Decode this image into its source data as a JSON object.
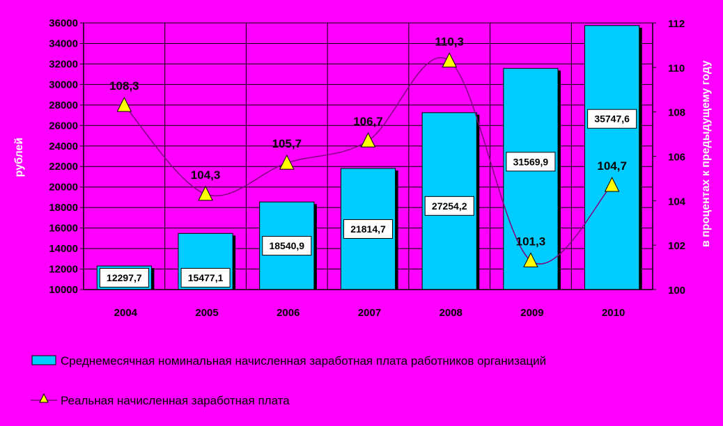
{
  "chart_data": {
    "type": "bar+line",
    "categories": [
      "2004",
      "2005",
      "2006",
      "2007",
      "2008",
      "2009",
      "2010"
    ],
    "series": [
      {
        "name": "Среднемесячная номинальная начисленная заработная плата работников организаций",
        "type": "bar",
        "axis": "left",
        "values": [
          12297.7,
          15477.1,
          18540.9,
          21814.7,
          27254.2,
          31569.9,
          35747.6
        ],
        "labels": [
          "12297,7",
          "15477,1",
          "18540,9",
          "21814,7",
          "27254,2",
          "31569,9",
          "35747,6"
        ],
        "color": "#00ccff"
      },
      {
        "name": "Реальная начисленная заработная плата",
        "type": "line",
        "axis": "right",
        "values": [
          108.3,
          104.3,
          105.7,
          106.7,
          110.3,
          101.3,
          104.7
        ],
        "labels": [
          "108,3",
          "104,3",
          "105,7",
          "106,7",
          "110,3",
          "101,3",
          "104,7"
        ],
        "color": "#800080",
        "marker": "triangle",
        "marker_color": "#ffff00"
      }
    ],
    "ylabel": "рублей",
    "ylabel_right": "в процентах к предыдущему году",
    "ylim": [
      10000,
      36000
    ],
    "ylim_right": [
      100,
      112
    ],
    "yticks": [
      "10000",
      "12000",
      "14000",
      "16000",
      "18000",
      "20000",
      "22000",
      "24000",
      "26000",
      "28000",
      "30000",
      "32000",
      "34000",
      "36000"
    ],
    "yticks_right": [
      "100",
      "102",
      "104",
      "106",
      "108",
      "110",
      "112"
    ],
    "grid": true,
    "legend_position": "bottom",
    "background_color": "#ff00ff"
  }
}
